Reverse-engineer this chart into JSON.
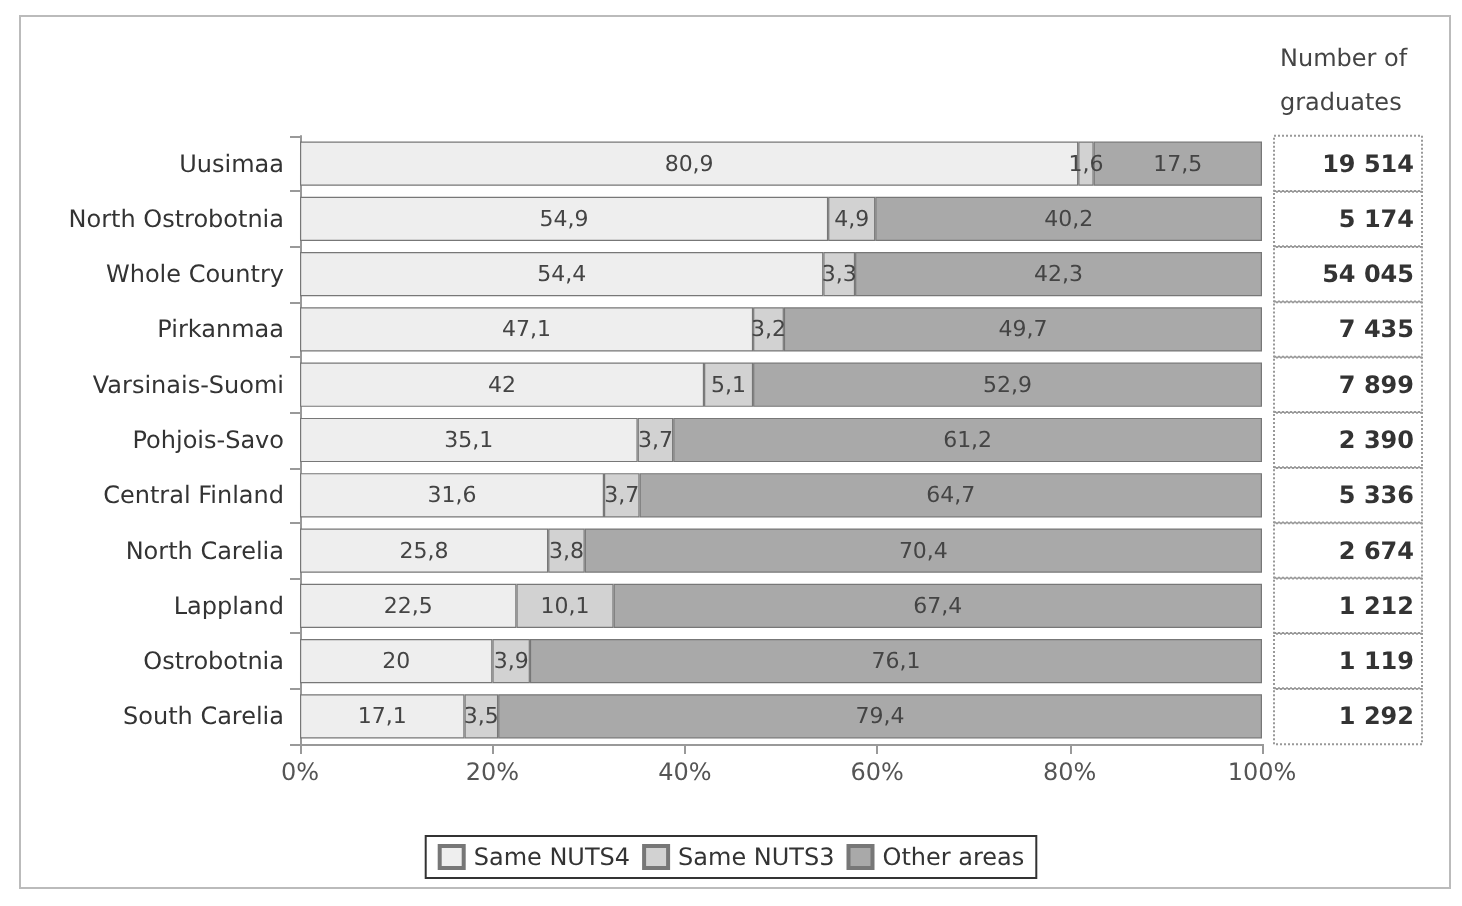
{
  "chart_data": {
    "type": "bar",
    "orientation": "horizontal",
    "stacked": true,
    "categories": [
      "Uusimaa",
      "North Ostrobotnia",
      "Whole Country",
      "Pirkanmaa",
      "Varsinais-Suomi",
      "Pohjois-Savo",
      "Central Finland",
      "North Carelia",
      "Lappland",
      "Ostrobotnia",
      "South Carelia"
    ],
    "series": [
      {
        "name": "Same NUTS4",
        "color": "#eeeeee",
        "values": [
          80.9,
          54.9,
          54.4,
          47.1,
          42,
          35.1,
          31.6,
          25.8,
          22.5,
          20,
          17.1
        ],
        "value_labels": [
          "80,9",
          "54,9",
          "54,4",
          "47,1",
          "42",
          "35,1",
          "31,6",
          "25,8",
          "22,5",
          "20",
          "17,1"
        ]
      },
      {
        "name": "Same NUTS3",
        "color": "#d2d2d2",
        "values": [
          1.6,
          4.9,
          3.3,
          3.2,
          5.1,
          3.7,
          3.7,
          3.8,
          10.1,
          3.9,
          3.5
        ],
        "value_labels": [
          "1,6",
          "4,9",
          "3,3",
          "3,2",
          "5,1",
          "3,7",
          "3,7",
          "3,8",
          "10,1",
          "3,9",
          "3,5"
        ]
      },
      {
        "name": "Other areas",
        "color": "#a9a9a9",
        "values": [
          17.5,
          40.2,
          42.3,
          49.7,
          52.9,
          61.2,
          64.7,
          70.4,
          67.4,
          76.1,
          79.4
        ],
        "value_labels": [
          "17,5",
          "40,2",
          "42,3",
          "49,7",
          "52,9",
          "61,2",
          "64,7",
          "70,4",
          "67,4",
          "76,1",
          "79,4"
        ]
      }
    ],
    "xlim": [
      0,
      100
    ],
    "xticks": [
      {
        "value": 0,
        "label": "0%"
      },
      {
        "value": 20,
        "label": "20%"
      },
      {
        "value": 40,
        "label": "40%"
      },
      {
        "value": 60,
        "label": "60%"
      },
      {
        "value": 80,
        "label": "80%"
      },
      {
        "value": 100,
        "label": "100%"
      }
    ],
    "grid": false,
    "legend": "bottom",
    "annotations": [
      "Number of graduates",
      "19 514",
      "5 174",
      "54 045",
      "7 435",
      "7 899",
      "2 390",
      "5 336",
      "2 674",
      "1 212",
      "1 119",
      "1 292"
    ]
  }
}
